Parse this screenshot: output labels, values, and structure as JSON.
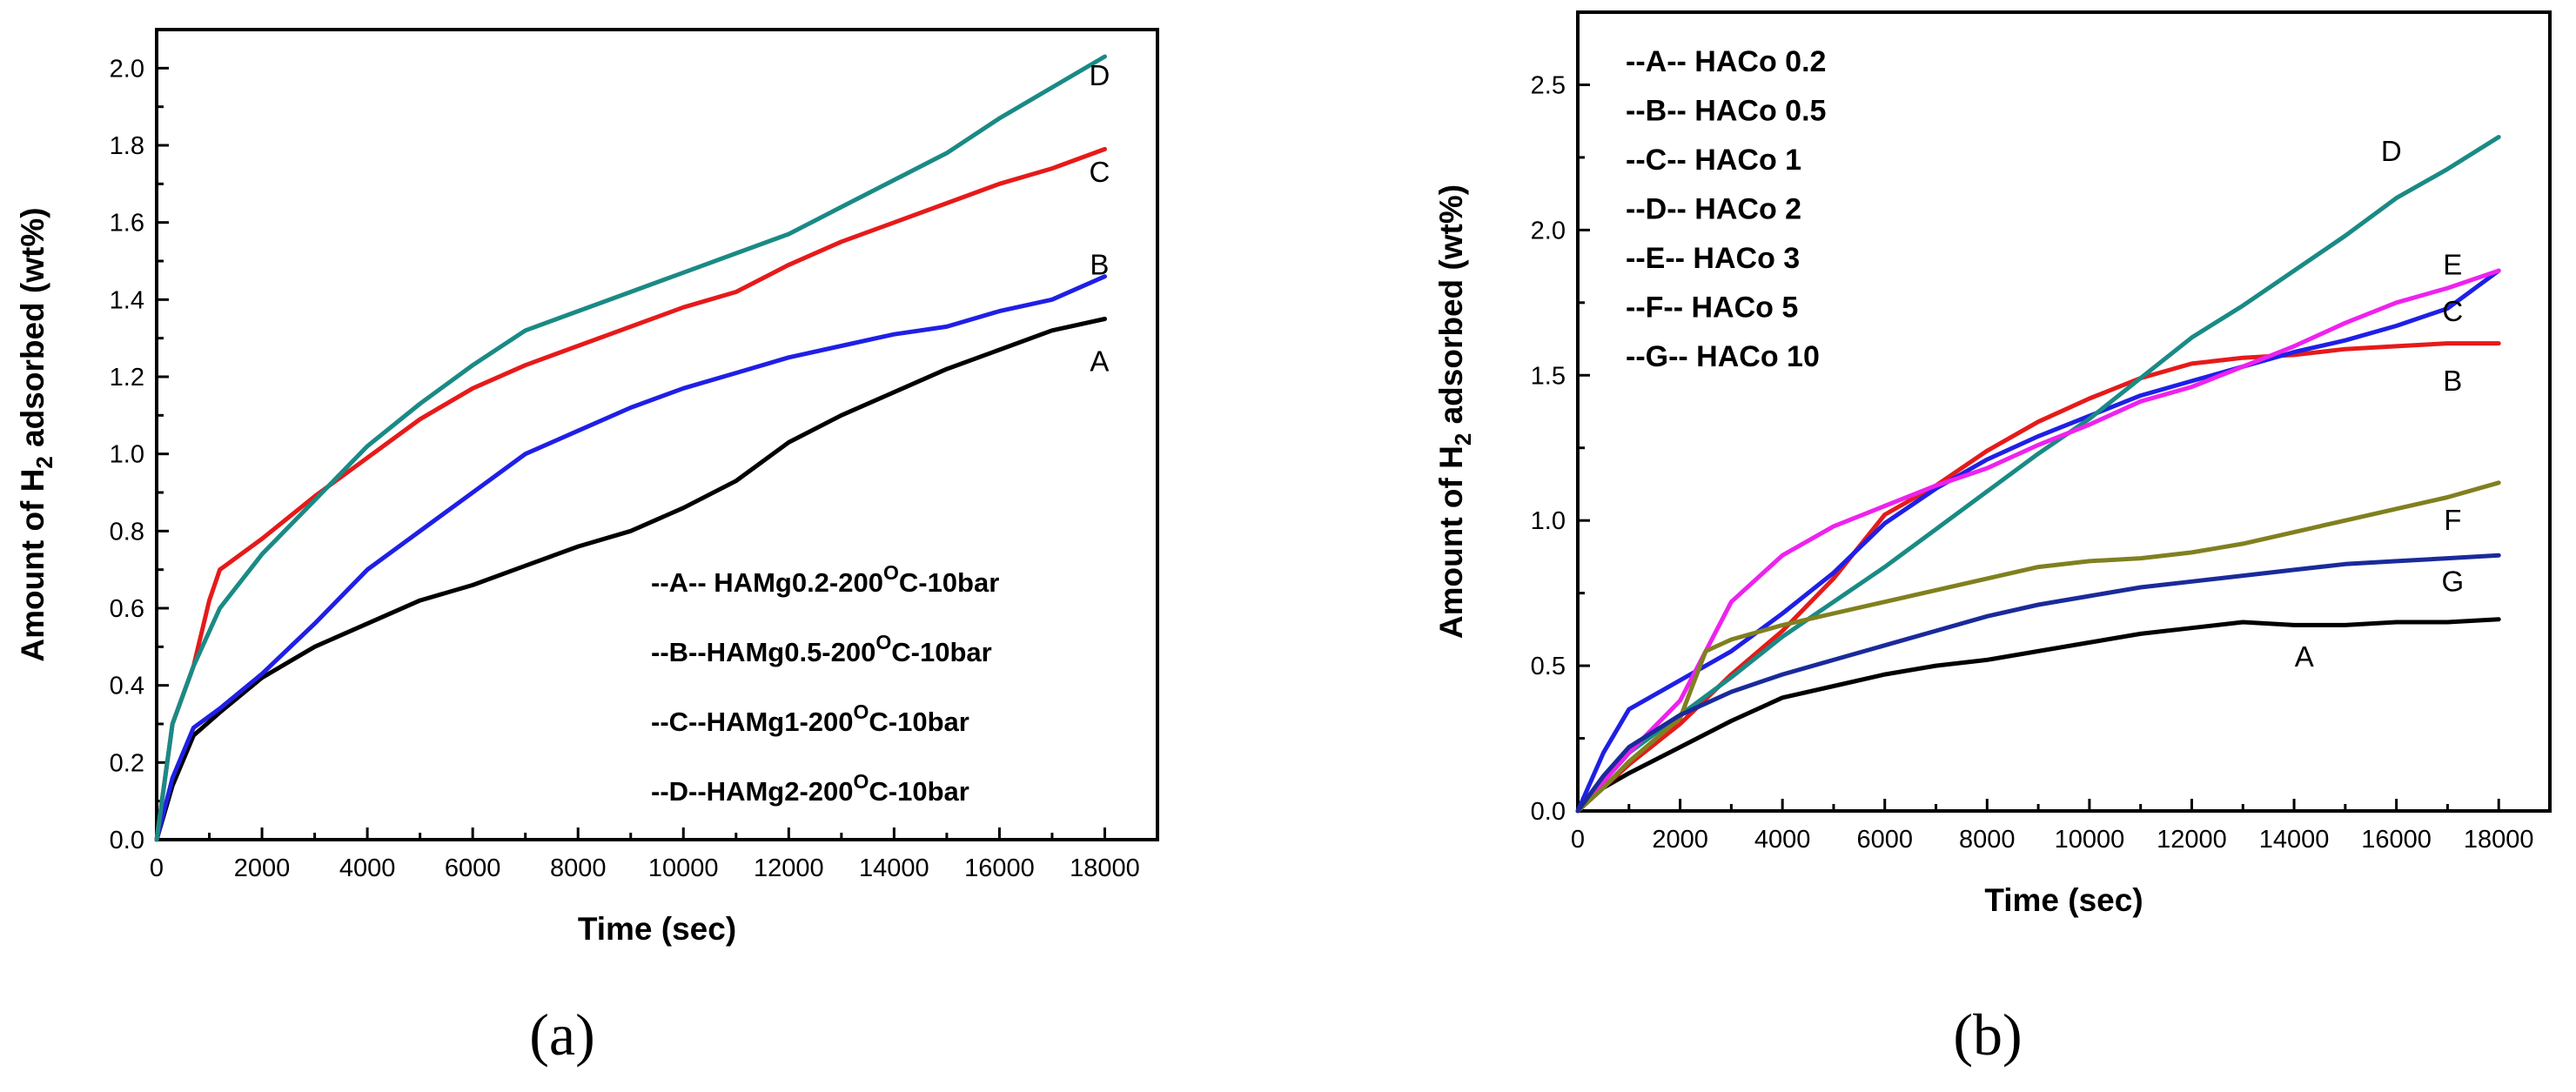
{
  "charts": [
    {
      "id": "a",
      "caption": "(a)",
      "xlabel": "Time (sec)",
      "ylabel": {
        "pre": "Amount of H",
        "sub": "2",
        "post": " adsorbed (wt%)"
      },
      "xlim": [
        0,
        19000
      ],
      "ylim": [
        0,
        2.1
      ],
      "xticks": [
        "0",
        "2000",
        "4000",
        "6000",
        "8000",
        "10000",
        "12000",
        "14000",
        "16000",
        "18000"
      ],
      "xtick_values": [
        0,
        2000,
        4000,
        6000,
        8000,
        10000,
        12000,
        14000,
        16000,
        18000
      ],
      "yticks": [
        "0.0",
        "0.2",
        "0.4",
        "0.6",
        "0.8",
        "1.0",
        "1.2",
        "1.4",
        "1.6",
        "1.8",
        "2.0"
      ],
      "ytick_values": [
        0,
        0.2,
        0.4,
        0.6,
        0.8,
        1.0,
        1.2,
        1.4,
        1.6,
        1.8,
        2.0
      ],
      "legend": [
        {
          "t1": "--A-- HAMg0.2-200",
          "sup": "O",
          "t2": "C-10bar"
        },
        {
          "t1": "--B--HAMg0.5-200",
          "sup": "O",
          "t2": "C-10bar"
        },
        {
          "t1": "--C--HAMg1-200",
          "sup": "O",
          "t2": "C-10bar"
        },
        {
          "t1": "--D--HAMg2-200",
          "sup": "O",
          "t2": "C-10bar"
        }
      ],
      "series": [
        {
          "label": "A",
          "color": "#000000",
          "label_at": [
            17900,
            1.24
          ],
          "x": [
            0,
            300,
            700,
            1200,
            2000,
            3000,
            4000,
            5000,
            6000,
            7000,
            8000,
            9000,
            10000,
            11000,
            12000,
            13000,
            14000,
            15000,
            16000,
            17000,
            18000
          ],
          "y": [
            0,
            0.14,
            0.27,
            0.33,
            0.42,
            0.5,
            0.56,
            0.62,
            0.66,
            0.71,
            0.76,
            0.8,
            0.86,
            0.93,
            1.03,
            1.1,
            1.16,
            1.22,
            1.27,
            1.32,
            1.35
          ]
        },
        {
          "label": "B",
          "color": "#1f1fe6",
          "label_at": [
            17900,
            1.49
          ],
          "x": [
            0,
            300,
            700,
            1200,
            2000,
            3000,
            4000,
            5000,
            6000,
            7000,
            8000,
            9000,
            10000,
            11000,
            12000,
            13000,
            14000,
            15000,
            16000,
            17000,
            18000
          ],
          "y": [
            0,
            0.16,
            0.29,
            0.34,
            0.43,
            0.56,
            0.7,
            0.8,
            0.9,
            1.0,
            1.06,
            1.12,
            1.17,
            1.21,
            1.25,
            1.28,
            1.31,
            1.33,
            1.37,
            1.4,
            1.46
          ]
        },
        {
          "label": "C",
          "color": "#e61a1a",
          "label_at": [
            17900,
            1.73
          ],
          "x": [
            0,
            300,
            700,
            1000,
            1200,
            2000,
            3000,
            4000,
            5000,
            6000,
            7000,
            8000,
            9000,
            10000,
            11000,
            12000,
            13000,
            14000,
            15000,
            16000,
            17000,
            18000
          ],
          "y": [
            0,
            0.3,
            0.45,
            0.62,
            0.7,
            0.78,
            0.89,
            0.99,
            1.09,
            1.17,
            1.23,
            1.28,
            1.33,
            1.38,
            1.42,
            1.49,
            1.55,
            1.6,
            1.65,
            1.7,
            1.74,
            1.79
          ]
        },
        {
          "label": "D",
          "color": "#1a8a85",
          "label_at": [
            17900,
            1.98
          ],
          "x": [
            0,
            300,
            700,
            1200,
            2000,
            3000,
            4000,
            5000,
            6000,
            7000,
            8000,
            9000,
            10000,
            11000,
            12000,
            13000,
            14000,
            15000,
            16000,
            17000,
            18000
          ],
          "y": [
            0,
            0.3,
            0.45,
            0.6,
            0.74,
            0.88,
            1.02,
            1.13,
            1.23,
            1.32,
            1.37,
            1.42,
            1.47,
            1.52,
            1.57,
            1.64,
            1.71,
            1.78,
            1.87,
            1.95,
            2.03
          ]
        }
      ]
    },
    {
      "id": "b",
      "caption": "(b)",
      "xlabel": "Time (sec)",
      "ylabel": {
        "pre": "Amount of H",
        "sub": "2",
        "post": " adsorbed (wt%)"
      },
      "xlim": [
        0,
        19000
      ],
      "ylim": [
        0,
        2.75
      ],
      "xticks": [
        "0",
        "2000",
        "4000",
        "6000",
        "8000",
        "10000",
        "12000",
        "14000",
        "16000",
        "18000"
      ],
      "xtick_values": [
        0,
        2000,
        4000,
        6000,
        8000,
        10000,
        12000,
        14000,
        16000,
        18000
      ],
      "yticks": [
        "0.0",
        "0.5",
        "1.0",
        "1.5",
        "2.0",
        "2.5"
      ],
      "ytick_values": [
        0,
        0.5,
        1.0,
        1.5,
        2.0,
        2.5
      ],
      "legend": [
        {
          "t1": "--A-- HACo 0.2"
        },
        {
          "t1": "--B-- HACo 0.5"
        },
        {
          "t1": "--C-- HACo 1"
        },
        {
          "t1": "--D-- HACo 2"
        },
        {
          "t1": "--E-- HACo 3"
        },
        {
          "t1": "--F-- HACo 5"
        },
        {
          "t1": "--G-- HACo 10"
        }
      ],
      "series": [
        {
          "label": "A",
          "color": "#000000",
          "label_at": [
            14200,
            0.53
          ],
          "x": [
            0,
            500,
            1000,
            2000,
            3000,
            4000,
            5000,
            6000,
            7000,
            8000,
            9000,
            10000,
            11000,
            12000,
            13000,
            14000,
            15000,
            16000,
            17000,
            18000
          ],
          "y": [
            0,
            0.08,
            0.13,
            0.22,
            0.31,
            0.39,
            0.43,
            0.47,
            0.5,
            0.52,
            0.55,
            0.58,
            0.61,
            0.63,
            0.65,
            0.64,
            0.64,
            0.65,
            0.65,
            0.66
          ]
        },
        {
          "label": "B",
          "color": "#e61a1a",
          "label_at": [
            17100,
            1.48
          ],
          "x": [
            0,
            500,
            1000,
            2000,
            3000,
            4000,
            5000,
            6000,
            7000,
            8000,
            9000,
            10000,
            11000,
            12000,
            13000,
            14000,
            15000,
            16000,
            17000,
            18000
          ],
          "y": [
            0,
            0.08,
            0.16,
            0.3,
            0.47,
            0.62,
            0.8,
            1.02,
            1.12,
            1.24,
            1.34,
            1.42,
            1.49,
            1.54,
            1.56,
            1.57,
            1.59,
            1.6,
            1.61,
            1.61
          ]
        },
        {
          "label": "C",
          "color": "#1f1fe6",
          "label_at": [
            17100,
            1.72
          ],
          "x": [
            0,
            500,
            1000,
            2000,
            3000,
            4000,
            5000,
            6000,
            7000,
            8000,
            9000,
            10000,
            11000,
            12000,
            13000,
            14000,
            15000,
            16000,
            17000,
            18000
          ],
          "y": [
            0,
            0.2,
            0.35,
            0.45,
            0.55,
            0.68,
            0.82,
            0.99,
            1.11,
            1.21,
            1.29,
            1.36,
            1.43,
            1.48,
            1.53,
            1.58,
            1.62,
            1.67,
            1.73,
            1.86
          ]
        },
        {
          "label": "D",
          "color": "#1a8a85",
          "label_at": [
            15900,
            2.27
          ],
          "x": [
            0,
            500,
            1000,
            2000,
            3000,
            4000,
            5000,
            6000,
            7000,
            8000,
            9000,
            10000,
            11000,
            12000,
            13000,
            14000,
            15000,
            16000,
            17000,
            18000
          ],
          "y": [
            0,
            0.1,
            0.2,
            0.33,
            0.46,
            0.6,
            0.72,
            0.84,
            0.97,
            1.1,
            1.23,
            1.35,
            1.49,
            1.63,
            1.74,
            1.86,
            1.98,
            2.11,
            2.21,
            2.32
          ]
        },
        {
          "label": "E",
          "color": "#ee22ee",
          "label_at": [
            17100,
            1.88
          ],
          "x": [
            0,
            500,
            1000,
            2000,
            3000,
            4000,
            5000,
            6000,
            7000,
            8000,
            9000,
            10000,
            11000,
            12000,
            13000,
            14000,
            15000,
            16000,
            17000,
            18000
          ],
          "y": [
            0,
            0.1,
            0.2,
            0.38,
            0.72,
            0.88,
            0.98,
            1.05,
            1.12,
            1.18,
            1.26,
            1.33,
            1.41,
            1.46,
            1.53,
            1.6,
            1.68,
            1.75,
            1.8,
            1.86
          ]
        },
        {
          "label": "F",
          "color": "#808020",
          "label_at": [
            17100,
            1.0
          ],
          "x": [
            0,
            500,
            1000,
            2000,
            2500,
            3000,
            4000,
            5000,
            6000,
            7000,
            8000,
            9000,
            10000,
            11000,
            12000,
            13000,
            14000,
            15000,
            16000,
            17000,
            18000
          ],
          "y": [
            0,
            0.08,
            0.17,
            0.32,
            0.55,
            0.59,
            0.64,
            0.68,
            0.72,
            0.76,
            0.8,
            0.84,
            0.86,
            0.87,
            0.89,
            0.92,
            0.96,
            1.0,
            1.04,
            1.08,
            1.13
          ]
        },
        {
          "label": "G",
          "color": "#1a2a9a",
          "label_at": [
            17100,
            0.79
          ],
          "x": [
            0,
            500,
            1000,
            2000,
            3000,
            4000,
            5000,
            6000,
            7000,
            8000,
            9000,
            10000,
            11000,
            12000,
            13000,
            14000,
            15000,
            16000,
            17000,
            18000
          ],
          "y": [
            0,
            0.12,
            0.22,
            0.33,
            0.41,
            0.47,
            0.52,
            0.57,
            0.62,
            0.67,
            0.71,
            0.74,
            0.77,
            0.79,
            0.81,
            0.83,
            0.85,
            0.86,
            0.87,
            0.88
          ]
        }
      ]
    }
  ]
}
